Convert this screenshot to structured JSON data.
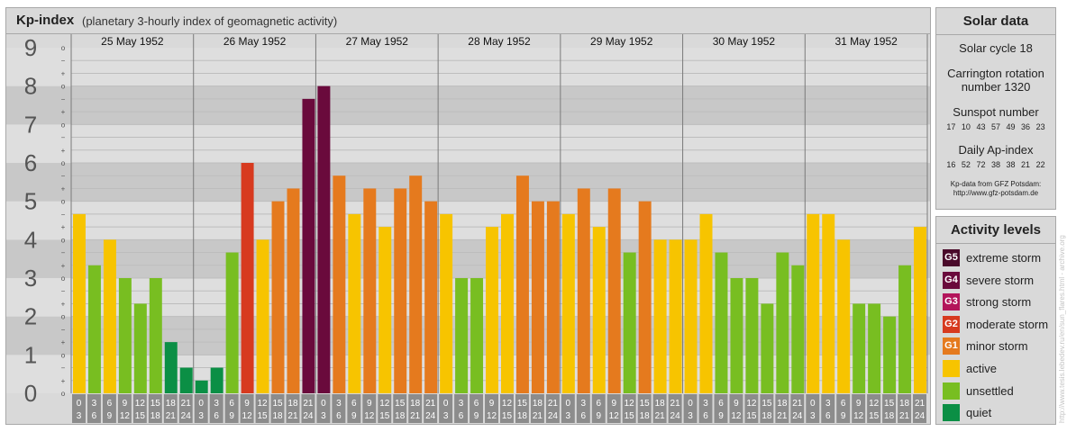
{
  "title": {
    "main": "Kp-index",
    "subtitle": "(planetary 3-hourly index of geomagnetic activity)"
  },
  "chart_data": {
    "type": "bar",
    "title": "Kp-index",
    "subtitle": "(planetary 3-hourly index of geomagnetic activity)",
    "ylim": [
      0,
      9
    ],
    "yticks": [
      "0",
      "1",
      "2",
      "3",
      "4",
      "5",
      "6",
      "7",
      "8",
      "9"
    ],
    "minor_tick_marks": [
      "o",
      "+",
      "−"
    ],
    "days": [
      "25 May 1952",
      "26 May 1952",
      "27 May 1952",
      "28 May 1952",
      "29 May 1952",
      "30 May 1952",
      "31 May 1952"
    ],
    "hour_intervals": [
      [
        "0",
        "3"
      ],
      [
        "3",
        "6"
      ],
      [
        "6",
        "9"
      ],
      [
        "9",
        "12"
      ],
      [
        "12",
        "15"
      ],
      [
        "15",
        "18"
      ],
      [
        "18",
        "21"
      ],
      [
        "21",
        "24"
      ]
    ],
    "values": [
      4.667,
      3.333,
      4.0,
      3.0,
      2.333,
      3.0,
      1.333,
      0.667,
      0.333,
      0.667,
      3.667,
      6.0,
      4.0,
      5.0,
      5.333,
      7.667,
      8.0,
      5.667,
      4.667,
      5.333,
      4.333,
      5.333,
      5.667,
      5.0,
      4.667,
      3.0,
      3.0,
      4.333,
      4.667,
      5.667,
      5.0,
      5.0,
      4.667,
      5.333,
      4.333,
      5.333,
      3.667,
      5.0,
      4.0,
      4.0,
      4.0,
      4.667,
      3.667,
      3.0,
      3.0,
      2.333,
      3.667,
      3.333,
      4.667,
      4.667,
      4.0,
      2.333,
      2.333,
      2.0,
      3.333,
      4.333
    ],
    "grid": true
  },
  "solar_data": {
    "heading": "Solar data",
    "solar_cycle": "Solar cycle 18",
    "carrington_line1": "Carrington rotation",
    "carrington_line2": "number 1320",
    "sunspot_label": "Sunspot number",
    "sunspot_values": [
      "17",
      "10",
      "43",
      "57",
      "49",
      "36",
      "23"
    ],
    "ap_label": "Daily Ap-index",
    "ap_values": [
      "16",
      "52",
      "72",
      "38",
      "38",
      "21",
      "22"
    ],
    "source_line1": "Kp-data from GFZ Potsdam:",
    "source_line2": "http://www.gfz-potsdam.de"
  },
  "activity_levels": {
    "heading": "Activity levels",
    "items": [
      {
        "code": "G5",
        "label": "extreme storm",
        "color": "#4a0a2a"
      },
      {
        "code": "G4",
        "label": "severe storm",
        "color": "#6a0a3c"
      },
      {
        "code": "G3",
        "label": "strong storm",
        "color": "#b3145a"
      },
      {
        "code": "G2",
        "label": "moderate storm",
        "color": "#d73a1f"
      },
      {
        "code": "G1",
        "label": "minor storm",
        "color": "#e57a1e"
      },
      {
        "code": "",
        "label": "active",
        "color": "#f7c400"
      },
      {
        "code": "",
        "label": "unsettled",
        "color": "#78be21"
      },
      {
        "code": "",
        "label": "quiet",
        "color": "#0b8f45"
      }
    ]
  },
  "colors": {
    "quiet": "#0b8f45",
    "unsettled": "#78be21",
    "active": "#f7c400",
    "minor_storm": "#e57a1e",
    "moderate_storm": "#d73a1f",
    "strong_storm": "#b3145a",
    "severe_storm": "#6a0a3c",
    "extreme_storm": "#4a0a2a",
    "band_dark": "#c8c8c8",
    "band_light": "#dedede",
    "axis_gray": "#8c8c8c"
  },
  "credit": "http://www.tesis.lebedev.ru/en/sun_flares.html - archive.org"
}
